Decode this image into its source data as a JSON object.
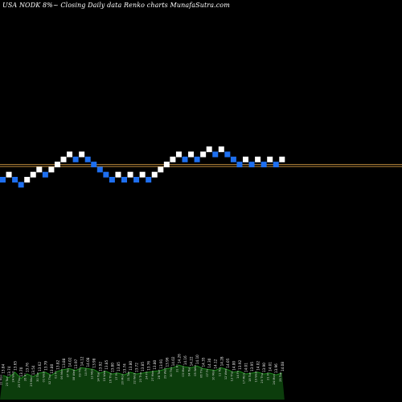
{
  "header": {
    "ticker": "USA NODK",
    "change": "8%",
    "tilde": "~",
    "description": "Closing Daily data",
    "chart_kind": "Renko",
    "source": "charts MunafaSutra.com"
  },
  "colors": {
    "background": "#000000",
    "up_brick": "#ffffff",
    "down_brick": "#1e6ff0",
    "ref_line": "#b8863b",
    "volume_fill": "#0c3d0c",
    "volume_top": "#1c8a1c"
  },
  "chart_data": {
    "type": "renko",
    "direction": [
      "down",
      "up",
      "down",
      "down",
      "up",
      "up",
      "up",
      "down",
      "up",
      "up",
      "up",
      "up",
      "down",
      "up",
      "down",
      "down",
      "down",
      "down",
      "down",
      "up",
      "down",
      "up",
      "down",
      "up",
      "down",
      "up",
      "up",
      "up",
      "up",
      "up",
      "down",
      "up",
      "down",
      "up",
      "up",
      "down",
      "up",
      "down",
      "down",
      "down",
      "up",
      "down",
      "up",
      "down",
      "up",
      "down",
      "up"
    ],
    "levels": [
      0,
      1,
      0,
      -1,
      0,
      1,
      2,
      1,
      2,
      3,
      4,
      5,
      4,
      5,
      4,
      3,
      2,
      1,
      0,
      1,
      0,
      1,
      0,
      1,
      0,
      1,
      2,
      3,
      4,
      5,
      4,
      5,
      4,
      5,
      6,
      5,
      6,
      5,
      4,
      3,
      4,
      3,
      4,
      3,
      4,
      3,
      4
    ],
    "ref_lines": [
      {
        "level": 3.0,
        "color": "#b8863b"
      },
      {
        "level": 2.6,
        "color": "#b8863b"
      }
    ],
    "volume": [
      0.55,
      0.5,
      0.62,
      0.48,
      0.58,
      0.52,
      0.6,
      0.62,
      0.55,
      0.64,
      0.68,
      0.7,
      0.66,
      0.72,
      0.7,
      0.68,
      0.6,
      0.64,
      0.58,
      0.6,
      0.56,
      0.62,
      0.58,
      0.6,
      0.62,
      0.64,
      0.66,
      0.7,
      0.72,
      0.78,
      0.74,
      0.72,
      0.76,
      0.7,
      0.68,
      0.66,
      0.72,
      0.68,
      0.62,
      0.64,
      0.58,
      0.6,
      0.62,
      0.58,
      0.6,
      0.56,
      0.6
    ],
    "bottom_labels": [
      "13.84",
      "13.74",
      "13.65",
      "13.70",
      "13.76",
      "13.54",
      "13.62",
      "13.79",
      "13.80",
      "13.82",
      "13.88",
      "14.02",
      "13.97",
      "14.12",
      "14.08",
      "13.98",
      "13.92",
      "13.85",
      "13.80",
      "13.85",
      "13.74",
      "13.80",
      "13.72",
      "13.85",
      "13.76",
      "13.80",
      "13.91",
      "13.96",
      "14.02",
      "14.26",
      "14.16",
      "14.22",
      "14.10",
      "14.35",
      "14.30",
      "14.12",
      "14.28",
      "14.05",
      "14.00",
      "13.92",
      "14.01",
      "13.95",
      "14.02",
      "13.90",
      "14.01",
      "13.96",
      "14.08"
    ],
    "bottom_dates": [
      "22 Mon",
      "23 Tue",
      "24 Wed",
      "25 Thu",
      "26 Fri",
      "29 Mon",
      "30 Tue",
      "01 Wed",
      "02 Thu",
      "03 Fri",
      "06 Mon",
      "07 Tue",
      "08 Wed",
      "09 Thu",
      "10 Fri",
      "13 Mon",
      "14 Tue",
      "15 Wed",
      "16 Thu",
      "17 Fri",
      "20 Mon",
      "21 Tue",
      "22 Wed",
      "23 Thu",
      "24 Fri",
      "27 Mon",
      "28 Tue",
      "29 Wed",
      "30 Thu",
      "31 Fri",
      "03 Mon",
      "04 Tue",
      "05 Wed",
      "06 Thu",
      "07 Fri",
      "10 Mon",
      "11 Tue",
      "12 Wed",
      "13 Thu",
      "14 Fri",
      "17 Mon",
      "18 Tue",
      "19 Wed",
      "20 Thu",
      "21 Fri",
      "24 Mon",
      "25 Tue"
    ]
  }
}
